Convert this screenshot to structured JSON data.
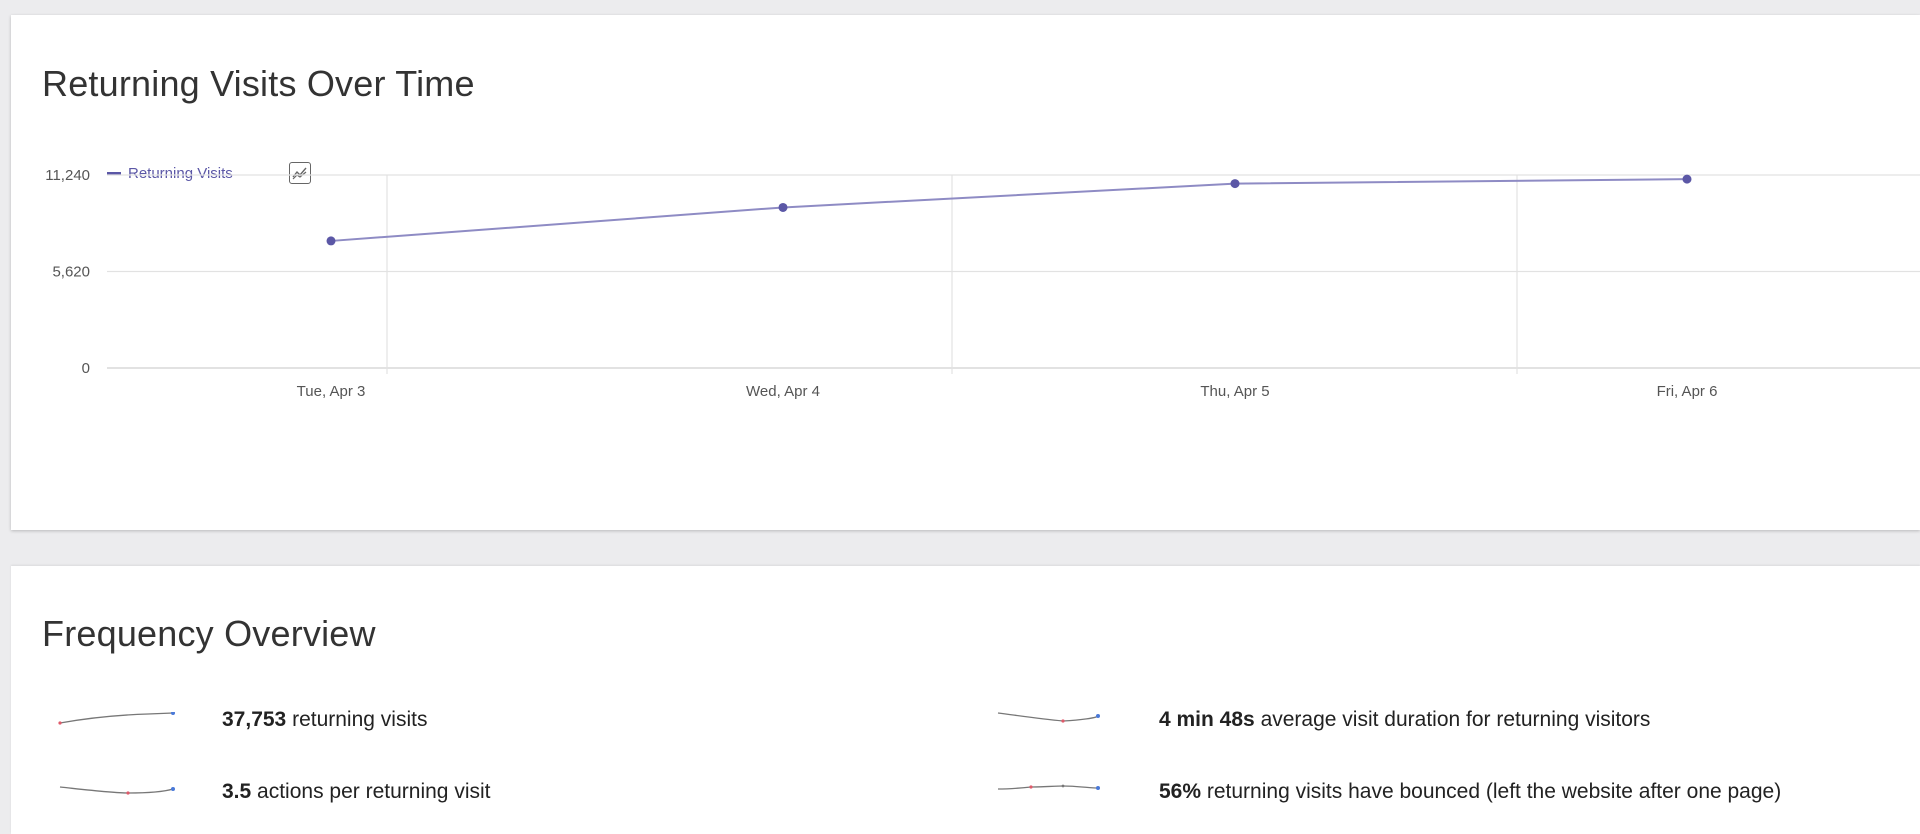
{
  "chart_card": {
    "title": "Returning Visits Over Time",
    "legend_label": "Returning Visits",
    "chart_type_icon": "line-chart-icon"
  },
  "chart_data": {
    "type": "line",
    "title": "Returning Visits Over Time",
    "categories": [
      "Tue, Apr 3",
      "Wed, Apr 4",
      "Thu, Apr 5",
      "Fri, Apr 6"
    ],
    "series": [
      {
        "name": "Returning Visits",
        "values": [
          7400,
          9350,
          10740,
          11000
        ]
      }
    ],
    "yticks": [
      "0",
      "5,620",
      "11,240"
    ],
    "ytick_values": [
      0,
      5620,
      11240
    ],
    "ylim": [
      0,
      11240
    ],
    "grid": true,
    "legend": "top-left",
    "color": "#5b57a6"
  },
  "frequency": {
    "title": "Frequency Overview",
    "metrics": [
      {
        "value": "37,753",
        "label": "returning visits",
        "sparkline_icon": "sparkline-icon"
      },
      {
        "value": "4 min 48s",
        "label": "average visit duration for returning visitors",
        "sparkline_icon": "sparkline-icon"
      },
      {
        "value": "3.5",
        "label": "actions per returning visit",
        "sparkline_icon": "sparkline-icon"
      },
      {
        "value": "56%",
        "label": "returning visits have bounced (left the website after one page)",
        "sparkline_icon": "sparkline-icon"
      }
    ]
  },
  "colors": {
    "series": "#5b57a6",
    "sparkline_line": "#666666",
    "sparkline_min": "#e05a6a",
    "sparkline_last": "#4a79d8"
  }
}
